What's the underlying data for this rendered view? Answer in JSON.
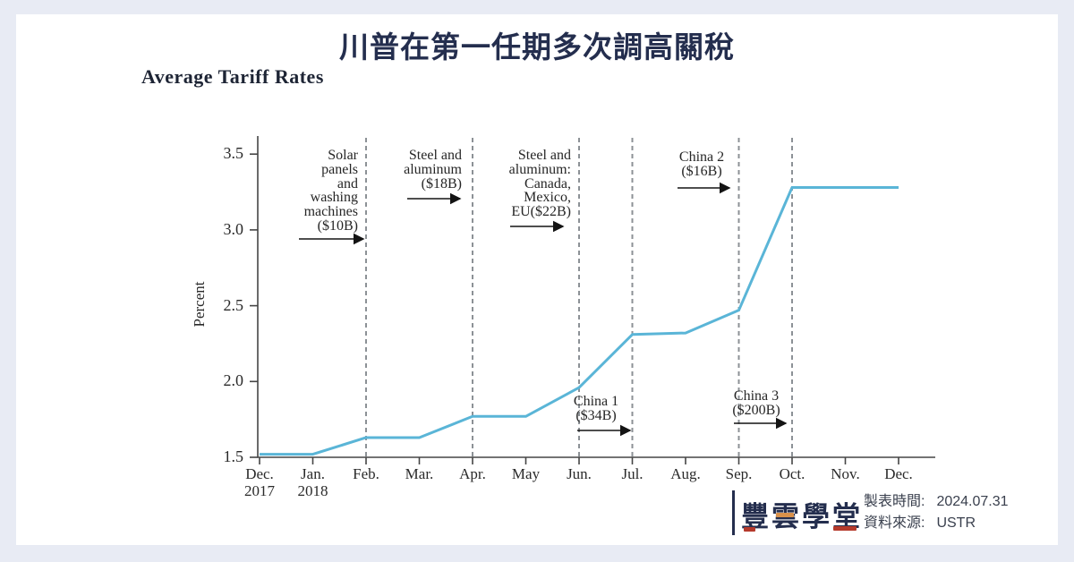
{
  "page": {
    "title": "川普在第一任期多次調高關稅"
  },
  "colors": {
    "background": "#e8ebf4",
    "panel": "#ffffff",
    "title": "#242e4e",
    "line": "#5ab5d7",
    "dashed_line": "#8c9196",
    "axis": "#454545",
    "accent_red": "#b53a2c",
    "accent_orange": "#d9914a"
  },
  "chart": {
    "title": "Average Tariff Rates",
    "y_axis": {
      "label": "Percent",
      "ticks": [
        "3.5",
        "3.0",
        "2.5",
        "2.0",
        "1.5"
      ]
    },
    "x_axis": {
      "labels": [
        "Dec.\n2017",
        "Jan.\n2018",
        "Feb.",
        "Mar.",
        "Apr.",
        "May",
        "Jun.",
        "Jul.",
        "Aug.",
        "Sep.",
        "Oct.",
        "Nov.",
        "Dec."
      ]
    },
    "annotations": [
      {
        "id": "solar-panels",
        "text": "Solar\npanels\nand\nwashing\nmachines\n($10B)",
        "event_month": "Feb."
      },
      {
        "id": "steel-aluminum-18b",
        "text": "Steel and\naluminum\n($18B)",
        "event_month": "Apr."
      },
      {
        "id": "steel-aluminum-22b",
        "text": "Steel and\naluminum:\nCanada,\nMexico,\nEU($22B)",
        "event_month": "Jun."
      },
      {
        "id": "china-2",
        "text": "China 2\n($16B)",
        "event_month": "Sep."
      },
      {
        "id": "china-1",
        "text": "China 1\n($34B)",
        "event_month": "Jul."
      },
      {
        "id": "china-3",
        "text": "China 3\n($200B)",
        "event_month": "Oct."
      }
    ]
  },
  "chart_data": {
    "type": "line",
    "title": "Average Tariff Rates",
    "xlabel": "",
    "ylabel": "Percent",
    "categories": [
      "Dec. 2017",
      "Jan. 2018",
      "Feb.",
      "Mar.",
      "Apr.",
      "May",
      "Jun.",
      "Jul.",
      "Aug.",
      "Sep.",
      "Oct.",
      "Nov.",
      "Dec."
    ],
    "values": [
      1.52,
      1.52,
      1.63,
      1.63,
      1.77,
      1.77,
      1.96,
      2.31,
      2.32,
      2.47,
      3.28,
      3.28,
      3.28
    ],
    "ylim": [
      1.5,
      3.5
    ],
    "y_ticks": [
      1.5,
      2.0,
      2.5,
      3.0,
      3.5
    ],
    "grid": false,
    "legend": "none",
    "line_color": "#5ab5d7",
    "event_line_months": [
      "Feb.",
      "Apr.",
      "Jun.",
      "Jul.",
      "Sep.",
      "Oct."
    ]
  },
  "footer": {
    "logo": "豐雲學堂",
    "made_label": "製表時間:",
    "made_value": "2024.07.31",
    "source_label": "資料來源:",
    "source_value": "USTR"
  }
}
